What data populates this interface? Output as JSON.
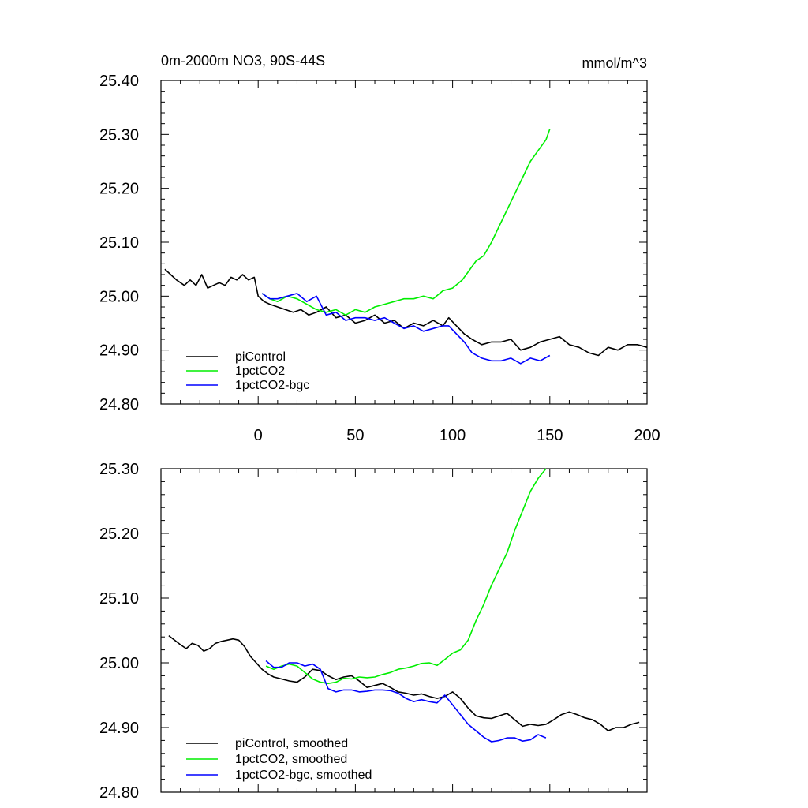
{
  "chart_data": [
    {
      "type": "line",
      "title": "0m-2000m NO3, 90S-44S",
      "units": "mmol/m^3",
      "xlim": [
        -50,
        200
      ],
      "ylim": [
        24.8,
        25.4
      ],
      "x_ticks": [
        0,
        50,
        100,
        150,
        200
      ],
      "y_ticks": [
        "25.40",
        "25.30",
        "25.20",
        "25.10",
        "25.00",
        "24.90",
        "24.80"
      ],
      "grid": false,
      "legend_position": "bottom-left",
      "series": [
        {
          "name": "piControl",
          "color": "#000000",
          "x": [
            -48,
            -45,
            -42,
            -38,
            -35,
            -32,
            -29,
            -26,
            -23,
            -20,
            -17,
            -14,
            -11,
            -8,
            -5,
            -2,
            0,
            3,
            6,
            10,
            14,
            18,
            22,
            26,
            30,
            35,
            40,
            45,
            50,
            55,
            60,
            65,
            70,
            75,
            80,
            85,
            90,
            95,
            98,
            102,
            106,
            110,
            115,
            120,
            125,
            130,
            135,
            140,
            145,
            150,
            155,
            160,
            165,
            170,
            175,
            180,
            185,
            190,
            195,
            200
          ],
          "y": [
            25.05,
            25.04,
            25.03,
            25.02,
            25.03,
            25.02,
            25.04,
            25.015,
            25.02,
            25.025,
            25.02,
            25.035,
            25.03,
            25.04,
            25.03,
            25.035,
            25.0,
            24.99,
            24.985,
            24.98,
            24.975,
            24.97,
            24.975,
            24.965,
            24.97,
            24.98,
            24.96,
            24.965,
            24.95,
            24.955,
            24.965,
            24.95,
            24.955,
            24.94,
            24.95,
            24.945,
            24.955,
            24.945,
            24.96,
            24.945,
            24.93,
            24.92,
            24.91,
            24.915,
            24.915,
            24.92,
            24.9,
            24.905,
            24.915,
            24.92,
            24.925,
            24.91,
            24.905,
            24.895,
            24.89,
            24.905,
            24.9,
            24.91,
            24.91,
            24.905
          ]
        },
        {
          "name": "1pctCO2",
          "color": "#00ee00",
          "x": [
            2,
            6,
            10,
            15,
            20,
            25,
            30,
            35,
            40,
            45,
            50,
            55,
            60,
            65,
            70,
            75,
            80,
            85,
            90,
            95,
            100,
            105,
            108,
            112,
            116,
            120,
            124,
            128,
            132,
            136,
            140,
            144,
            148,
            150
          ],
          "y": [
            25.005,
            24.995,
            24.99,
            25.0,
            24.995,
            24.985,
            24.975,
            24.97,
            24.975,
            24.965,
            24.975,
            24.97,
            24.98,
            24.985,
            24.99,
            24.995,
            24.995,
            25.0,
            24.995,
            25.01,
            25.015,
            25.03,
            25.045,
            25.065,
            25.075,
            25.1,
            25.13,
            25.16,
            25.19,
            25.22,
            25.25,
            25.27,
            25.29,
            25.31
          ]
        },
        {
          "name": "1pctCO2-bgc",
          "color": "#0000ff",
          "x": [
            2,
            6,
            10,
            15,
            20,
            25,
            30,
            35,
            40,
            45,
            50,
            55,
            60,
            65,
            70,
            75,
            80,
            85,
            90,
            95,
            98,
            102,
            106,
            110,
            115,
            120,
            125,
            130,
            135,
            140,
            145,
            150
          ],
          "y": [
            25.005,
            24.995,
            24.995,
            25.0,
            25.005,
            24.99,
            25.0,
            24.965,
            24.97,
            24.955,
            24.96,
            24.96,
            24.955,
            24.96,
            24.95,
            24.94,
            24.945,
            24.935,
            24.94,
            24.945,
            24.945,
            24.93,
            24.915,
            24.895,
            24.885,
            24.88,
            24.88,
            24.885,
            24.875,
            24.885,
            24.88,
            24.89
          ]
        }
      ]
    },
    {
      "type": "line",
      "xlim": [
        -50,
        200
      ],
      "ylim": [
        24.8,
        25.3
      ],
      "y_ticks": [
        "25.30",
        "25.20",
        "25.10",
        "25.00",
        "24.90",
        "24.80"
      ],
      "grid": false,
      "legend_position": "bottom-left",
      "series": [
        {
          "name": "piControl, smoothed",
          "color": "#000000",
          "x": [
            -46,
            -43,
            -40,
            -37,
            -34,
            -31,
            -28,
            -25,
            -22,
            -19,
            -16,
            -13,
            -10,
            -7,
            -4,
            -1,
            2,
            5,
            8,
            12,
            16,
            20,
            24,
            28,
            32,
            36,
            40,
            44,
            48,
            52,
            56,
            60,
            64,
            68,
            72,
            76,
            80,
            84,
            88,
            92,
            96,
            100,
            104,
            108,
            112,
            116,
            120,
            124,
            128,
            132,
            136,
            140,
            144,
            148,
            152,
            156,
            160,
            164,
            168,
            172,
            176,
            180,
            184,
            188,
            192,
            196
          ],
          "y": [
            25.042,
            25.035,
            25.028,
            25.022,
            25.03,
            25.027,
            25.018,
            25.022,
            25.03,
            25.033,
            25.035,
            25.037,
            25.035,
            25.025,
            25.01,
            25.0,
            24.99,
            24.983,
            24.978,
            24.975,
            24.972,
            24.97,
            24.978,
            24.99,
            24.988,
            24.98,
            24.974,
            24.978,
            24.98,
            24.972,
            24.962,
            24.965,
            24.968,
            24.962,
            24.955,
            24.953,
            24.95,
            24.952,
            24.948,
            24.945,
            24.948,
            24.955,
            24.945,
            24.93,
            24.918,
            24.915,
            24.914,
            24.918,
            24.922,
            24.912,
            24.902,
            24.905,
            24.903,
            24.905,
            24.912,
            24.92,
            24.924,
            24.92,
            24.915,
            24.912,
            24.905,
            24.895,
            24.9,
            24.9,
            24.905,
            24.908
          ]
        },
        {
          "name": "1pctCO2, smoothed",
          "color": "#00ee00",
          "x": [
            4,
            8,
            12,
            16,
            20,
            24,
            28,
            32,
            36,
            40,
            44,
            48,
            52,
            56,
            60,
            64,
            68,
            72,
            76,
            80,
            84,
            88,
            92,
            96,
            100,
            104,
            108,
            112,
            116,
            120,
            124,
            128,
            132,
            136,
            140,
            144,
            148
          ],
          "y": [
            24.995,
            24.99,
            24.995,
            24.998,
            24.995,
            24.985,
            24.975,
            24.97,
            24.968,
            24.97,
            24.976,
            24.975,
            24.978,
            24.977,
            24.978,
            24.982,
            24.985,
            24.99,
            24.992,
            24.995,
            24.999,
            25.0,
            24.996,
            25.005,
            25.015,
            25.02,
            25.035,
            25.065,
            25.09,
            25.12,
            25.145,
            25.17,
            25.205,
            25.235,
            25.265,
            25.285,
            25.3
          ]
        },
        {
          "name": "1pctCO2-bgc, smoothed",
          "color": "#0000ff",
          "x": [
            4,
            8,
            12,
            16,
            20,
            24,
            28,
            32,
            36,
            40,
            44,
            48,
            52,
            56,
            60,
            64,
            68,
            72,
            76,
            80,
            84,
            88,
            92,
            96,
            100,
            104,
            108,
            112,
            116,
            120,
            124,
            128,
            132,
            136,
            140,
            144,
            148
          ],
          "y": [
            25.003,
            24.993,
            24.993,
            25.0,
            25.0,
            24.995,
            24.998,
            24.99,
            24.96,
            24.955,
            24.958,
            24.958,
            24.955,
            24.956,
            24.958,
            24.958,
            24.957,
            24.953,
            24.945,
            24.94,
            24.943,
            24.94,
            24.938,
            24.95,
            24.935,
            24.92,
            24.905,
            24.895,
            24.885,
            24.878,
            24.88,
            24.884,
            24.884,
            24.879,
            24.881,
            24.889,
            24.884
          ]
        }
      ]
    }
  ]
}
